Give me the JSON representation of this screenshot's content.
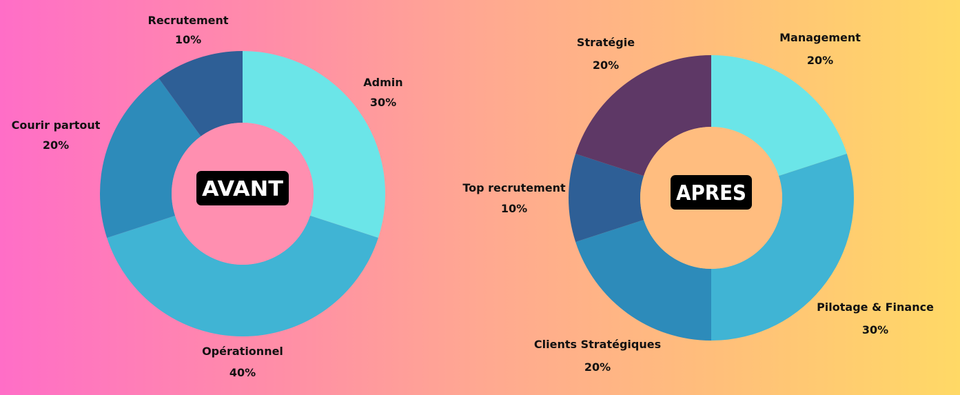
{
  "chart_data": [
    {
      "type": "pie",
      "center_label": "AVANT",
      "categories": [
        "Admin",
        "Opérationnel",
        "Courir partout",
        "Recrutement"
      ],
      "values": [
        30,
        40,
        20,
        10
      ],
      "value_labels": [
        "30%",
        "40%",
        "20%",
        "10%"
      ],
      "colors": [
        "#6be5e8",
        "#40b4d4",
        "#2d8bba",
        "#2e5f96"
      ]
    },
    {
      "type": "pie",
      "center_label": "APRES",
      "categories": [
        "Management",
        "Pilotage & Finance",
        "Clients Stratégiques",
        "Top recrutement",
        "Stratégie"
      ],
      "values": [
        20,
        30,
        20,
        10,
        20
      ],
      "value_labels": [
        "20%",
        "30%",
        "20%",
        "10%",
        "20%"
      ],
      "colors": [
        "#6be5e8",
        "#40b4d4",
        "#2d8bba",
        "#2e5f96",
        "#5e3866"
      ]
    }
  ]
}
